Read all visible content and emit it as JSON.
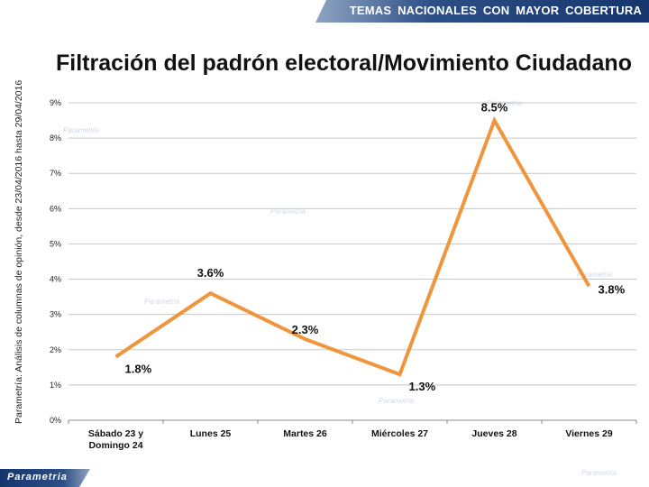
{
  "header": {
    "banner": "TEMAS NACIONALES CON MAYOR COBERTURA"
  },
  "side_note": "Parametría: Análisis de columnas de opinión, desde 23/04/2016 hasta 29/04/2016",
  "brand": {
    "name": "Parametría",
    "footer": "Parametria",
    "watermark": "Parametria"
  },
  "colors": {
    "line": "#f0953c",
    "grid": "#c8c8c8",
    "banner": "#1c3c73"
  },
  "chart_data": {
    "type": "line",
    "title": "Filtración del padrón electoral/Movimiento Ciudadano",
    "categories": [
      "Sábado 23 y Domingo 24",
      "Lunes 25",
      "Martes 26",
      "Miércoles 27",
      "Jueves 28",
      "Viernes 29"
    ],
    "values": [
      1.8,
      3.6,
      2.3,
      1.3,
      8.5,
      3.8
    ],
    "value_labels": [
      "1.8%",
      "3.6%",
      "2.3%",
      "1.3%",
      "8.5%",
      "3.8%"
    ],
    "y_ticks": [
      "0%",
      "1%",
      "2%",
      "3%",
      "4%",
      "5%",
      "6%",
      "7%",
      "8%",
      "9%"
    ],
    "ylim": [
      0,
      9
    ],
    "grid": true,
    "legend": "none"
  }
}
